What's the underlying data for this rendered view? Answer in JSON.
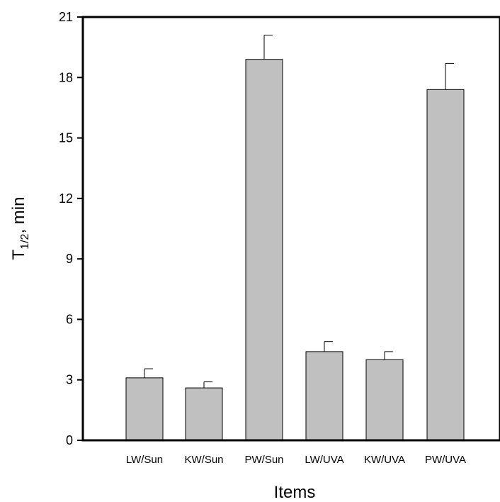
{
  "chart_data": {
    "type": "bar",
    "categories": [
      "LW/Sun",
      "KW/Sun",
      "PW/Sun",
      "LW/UVA",
      "KW/UVA",
      "PW/UVA"
    ],
    "values": [
      3.1,
      2.6,
      18.9,
      4.4,
      4.0,
      17.4
    ],
    "errors": [
      0.45,
      0.3,
      1.2,
      0.5,
      0.4,
      1.3
    ],
    "xlabel": "Items",
    "ylabel_main": "T",
    "ylabel_subscript": "1/2",
    "ylabel_rest": ", min",
    "ylim": [
      0,
      21
    ],
    "yticks": [
      0,
      3,
      6,
      9,
      12,
      15,
      18,
      21
    ],
    "grid": false,
    "bar_color": "#c0c0c0",
    "axis_color": "#000000"
  }
}
